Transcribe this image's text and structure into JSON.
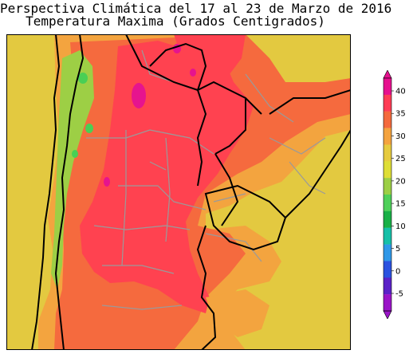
{
  "title": {
    "line1": "Perspectiva Climática del 17 al 23 de Marzo de 2016",
    "line2": "Temperatura Maxima (Grados Centigrados)"
  },
  "colorbar": {
    "labels": [
      "40",
      "35",
      "30",
      "25",
      "20",
      "15",
      "10",
      "5",
      "0",
      "-5"
    ],
    "colors": [
      "#e6108e",
      "#ff3c55",
      "#f46a3d",
      "#f4a33f",
      "#e6cb3f",
      "#dede36",
      "#9ccf45",
      "#4fd05a",
      "#19b047",
      "#16c0a8",
      "#2f98e8",
      "#2a52e0",
      "#5b22c8",
      "#9a14c8"
    ],
    "bands": [
      {
        "color": "#e6108e",
        "value": 40
      },
      {
        "color": "#ff3c55",
        "value": 35
      },
      {
        "color": "#f46a3d",
        "value": 32.5
      },
      {
        "color": "#f4a33f",
        "value": 30
      },
      {
        "color": "#e6cb3f",
        "value": 27.5
      },
      {
        "color": "#dede36",
        "value": 25
      },
      {
        "color": "#9ccf45",
        "value": 20
      },
      {
        "color": "#4fd05a",
        "value": 17.5
      },
      {
        "color": "#19b047",
        "value": 15
      },
      {
        "color": "#16c0a8",
        "value": 10
      },
      {
        "color": "#2f98e8",
        "value": 5
      },
      {
        "color": "#2a52e0",
        "value": 0
      },
      {
        "color": "#5b22c8",
        "value": -2.5
      },
      {
        "color": "#9a14c8",
        "value": -5
      }
    ]
  },
  "map_colors": {
    "hot": "#ff4250",
    "warm": "#f56a3e",
    "mild": "#f3a43f",
    "cool": "#e3c940",
    "green": "#9dcf45",
    "bright_green": "#49cf55",
    "peak": "#e6148e",
    "border": "#000000",
    "province": "#9a9a9a"
  }
}
